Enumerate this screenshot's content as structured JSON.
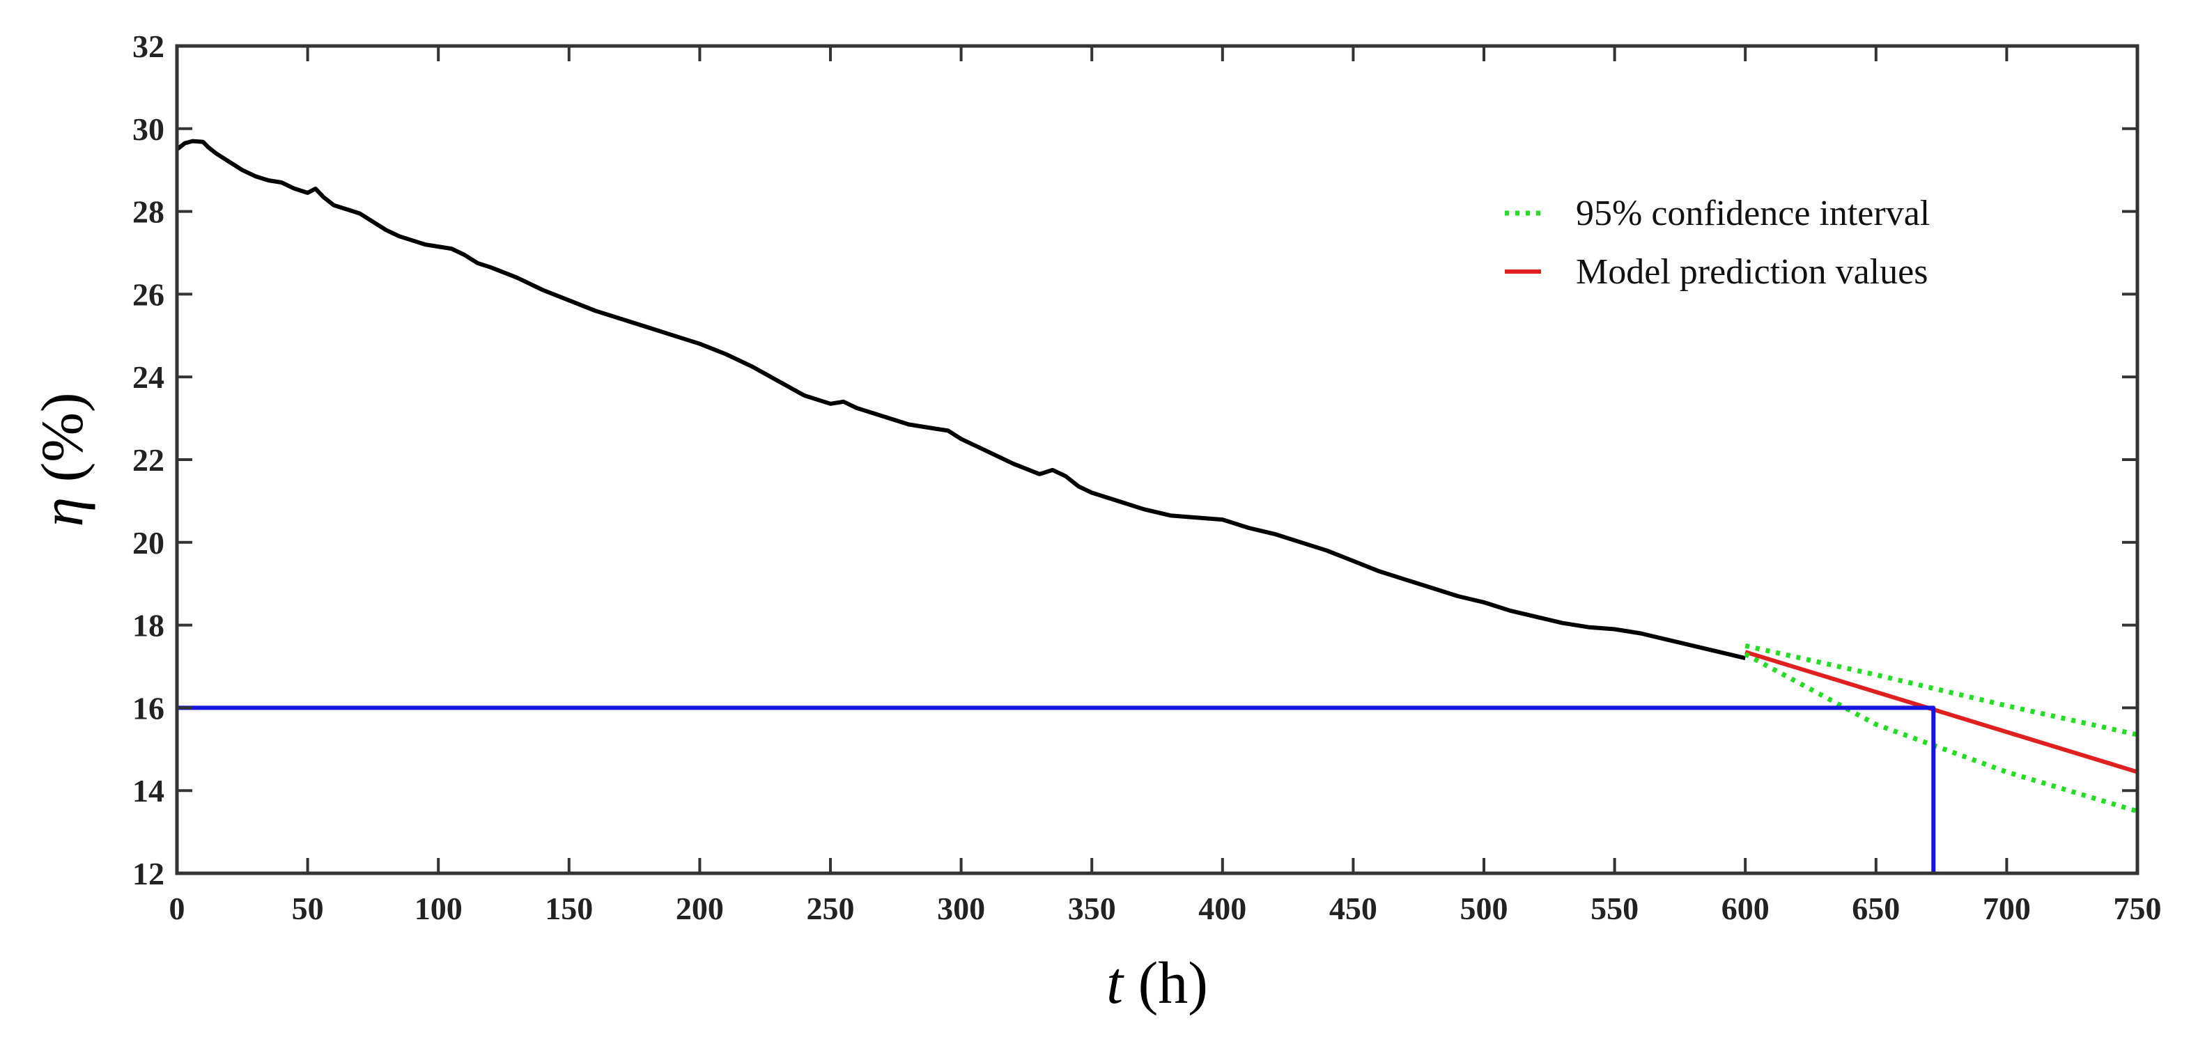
{
  "chart_data": {
    "type": "line",
    "title": "",
    "xlabel": {
      "var": "t",
      "unit": " (h)"
    },
    "ylabel": {
      "var": "η",
      "unit": " (%)"
    },
    "xlim": [
      0,
      750
    ],
    "ylim": [
      12,
      32
    ],
    "xticks": [
      0,
      50,
      100,
      150,
      200,
      250,
      300,
      350,
      400,
      450,
      500,
      550,
      600,
      650,
      700,
      750
    ],
    "yticks": [
      12,
      14,
      16,
      18,
      20,
      22,
      24,
      26,
      28,
      30,
      32
    ],
    "grid": false,
    "legend_position": "top-right",
    "series": [
      {
        "key": "measured",
        "color": "#000000",
        "style": "solid",
        "x": [
          0,
          3,
          6,
          10,
          12,
          15,
          20,
          25,
          30,
          35,
          40,
          45,
          50,
          53,
          56,
          60,
          65,
          70,
          75,
          80,
          85,
          90,
          95,
          100,
          105,
          110,
          115,
          120,
          130,
          140,
          150,
          160,
          170,
          180,
          190,
          200,
          210,
          220,
          230,
          240,
          250,
          255,
          260,
          270,
          280,
          290,
          295,
          300,
          310,
          320,
          330,
          335,
          340,
          345,
          350,
          360,
          370,
          380,
          390,
          400,
          410,
          420,
          430,
          440,
          450,
          460,
          470,
          480,
          490,
          500,
          510,
          520,
          530,
          540,
          550,
          560,
          570,
          580,
          590,
          600
        ],
        "y": [
          29.5,
          29.65,
          29.7,
          29.68,
          29.55,
          29.4,
          29.2,
          29.0,
          28.85,
          28.75,
          28.7,
          28.55,
          28.45,
          28.55,
          28.35,
          28.15,
          28.05,
          27.95,
          27.75,
          27.55,
          27.4,
          27.3,
          27.2,
          27.15,
          27.1,
          26.95,
          26.75,
          26.65,
          26.4,
          26.1,
          25.85,
          25.6,
          25.4,
          25.2,
          25.0,
          24.8,
          24.55,
          24.25,
          23.9,
          23.55,
          23.35,
          23.4,
          23.25,
          23.05,
          22.85,
          22.75,
          22.7,
          22.5,
          22.2,
          21.9,
          21.65,
          21.75,
          21.6,
          21.35,
          21.2,
          21.0,
          20.8,
          20.65,
          20.6,
          20.55,
          20.35,
          20.2,
          20.0,
          19.8,
          19.55,
          19.3,
          19.1,
          18.9,
          18.7,
          18.55,
          18.35,
          18.2,
          18.05,
          17.95,
          17.9,
          17.8,
          17.65,
          17.5,
          17.35,
          17.2
        ]
      },
      {
        "key": "prediction",
        "name": "Model prediction values",
        "color": "#e02020",
        "style": "solid",
        "x": [
          600,
          750
        ],
        "y": [
          17.35,
          14.45
        ]
      },
      {
        "key": "ci_upper",
        "name": "95% confidence interval",
        "color": "#22dd22",
        "style": "dotted",
        "x": [
          600,
          650,
          700,
          750
        ],
        "y": [
          17.5,
          16.8,
          16.05,
          15.35
        ]
      },
      {
        "key": "ci_lower",
        "color": "#22dd22",
        "style": "dotted",
        "x": [
          600,
          650,
          700,
          750
        ],
        "y": [
          17.3,
          15.6,
          14.45,
          13.5
        ]
      },
      {
        "key": "threshold",
        "color": "#1515dd",
        "style": "solid",
        "x": [
          0,
          672,
          672
        ],
        "y": [
          16,
          16,
          12
        ]
      }
    ]
  },
  "legend": {
    "items": [
      {
        "label": "95% confidence interval",
        "color": "#22dd22",
        "style": "dotted"
      },
      {
        "label": "Model prediction values",
        "color": "#e02020",
        "style": "solid"
      }
    ]
  }
}
